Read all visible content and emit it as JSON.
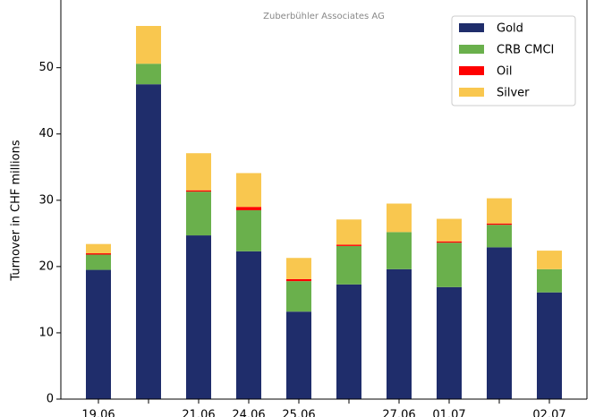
{
  "chart_data": {
    "type": "stacked_bar",
    "annotation": "Zuberbühler Associates AG",
    "ylabel": "Turnover in CHF millions",
    "categories": [
      "19.06",
      null,
      "21.06",
      "24.06",
      "25.06",
      null,
      "27.06",
      "01.07",
      null,
      "02.07"
    ],
    "series": [
      {
        "name": "Gold",
        "color": "#1f2d6b",
        "values": [
          19.5,
          47.5,
          24.7,
          22.3,
          13.2,
          17.3,
          19.6,
          16.9,
          22.9,
          16.1
        ]
      },
      {
        "name": "CRB CMCI",
        "color": "#6ab04c",
        "values": [
          2.3,
          3.1,
          6.6,
          6.2,
          4.6,
          5.8,
          5.6,
          6.7,
          3.4,
          3.5
        ]
      },
      {
        "name": "Oil",
        "color": "#ff0000",
        "values": [
          0.2,
          0,
          0.2,
          0.5,
          0.3,
          0.2,
          0,
          0.2,
          0.2,
          0
        ]
      },
      {
        "name": "Silver",
        "color": "#f9c74f",
        "values": [
          1.4,
          5.7,
          5.6,
          5.1,
          3.2,
          3.8,
          4.3,
          3.4,
          3.8,
          2.8
        ]
      }
    ],
    "ylim": [
      0,
      59
    ],
    "yticks": [
      0,
      10,
      20,
      30,
      40,
      50
    ],
    "legend": "upper right"
  }
}
